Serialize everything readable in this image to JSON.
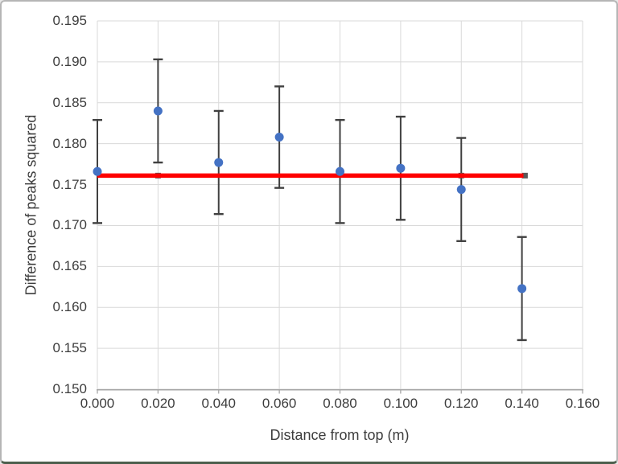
{
  "chart_data": {
    "type": "scatter",
    "title": "",
    "xlabel": "Distance from top (m)",
    "ylabel": "Difference of peaks squared",
    "x": [
      0.0,
      0.02,
      0.04,
      0.06,
      0.08,
      0.1,
      0.12,
      0.14
    ],
    "y": [
      0.1766,
      0.184,
      0.1777,
      0.1808,
      0.1766,
      0.177,
      0.1744,
      0.1623
    ],
    "y_err": [
      0.0063,
      0.0063,
      0.0063,
      0.0062,
      0.0063,
      0.0063,
      0.0063,
      0.0063
    ],
    "mean_line": {
      "value": 0.1761,
      "x_start": 0.0,
      "x_end": 0.1405,
      "marker_x": [
        0.02,
        0.12,
        0.141
      ],
      "color": "#fe0000",
      "marker_color": "#595959"
    },
    "xlim": [
      0.0,
      0.16
    ],
    "ylim": [
      0.15,
      0.195
    ],
    "x_ticks": [
      0.0,
      0.02,
      0.04,
      0.06,
      0.08,
      0.1,
      0.12,
      0.14,
      0.16
    ],
    "y_ticks": [
      0.15,
      0.155,
      0.16,
      0.165,
      0.17,
      0.175,
      0.18,
      0.185,
      0.19,
      0.195
    ],
    "x_tick_labels": [
      "0.000",
      "0.020",
      "0.040",
      "0.060",
      "0.080",
      "0.100",
      "0.120",
      "0.140",
      "0.160"
    ],
    "y_tick_labels": [
      "0.150",
      "0.155",
      "0.160",
      "0.165",
      "0.170",
      "0.175",
      "0.180",
      "0.185",
      "0.190",
      "0.195"
    ],
    "grid": true,
    "legend": "none",
    "colors": {
      "marker": "#4472c4",
      "error_bar": "#404040",
      "gridline": "#d9d9d9",
      "axis_line": "#a6a6a6",
      "label": "#3d3d3d"
    }
  }
}
